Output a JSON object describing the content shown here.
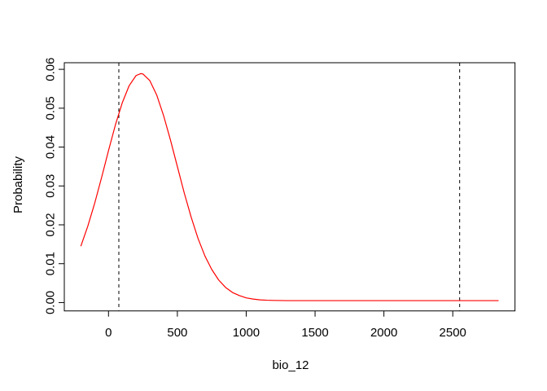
{
  "chart_data": {
    "type": "line",
    "xlabel": "bio_12",
    "ylabel": "Probability",
    "xlim": [
      -321,
      2952
    ],
    "ylim": [
      -0.00215,
      0.0617
    ],
    "grid": false,
    "legend": null,
    "background": "#FFFFFF",
    "axis_color": "#000000",
    "x_ticks": {
      "values": [
        0,
        500,
        1000,
        1500,
        2000,
        2500
      ],
      "labels": [
        "0",
        "500",
        "1000",
        "1500",
        "2000",
        "2500"
      ]
    },
    "y_ticks": {
      "values": [
        0,
        0.01,
        0.02,
        0.03,
        0.04,
        0.05,
        0.06
      ],
      "labels": [
        "0.00",
        "0.01",
        "0.02",
        "0.03",
        "0.04",
        "0.05",
        "0.06"
      ]
    },
    "vlines": [
      {
        "x": 75,
        "color": "#000000",
        "style": "dashed"
      },
      {
        "x": 2550,
        "color": "#000000",
        "style": "dashed"
      }
    ],
    "series": [
      {
        "name": "response_curve",
        "color": "#FF0000",
        "points": [
          [
            -200,
            0.0146
          ],
          [
            -150,
            0.0197
          ],
          [
            -100,
            0.0256
          ],
          [
            -50,
            0.0322
          ],
          [
            0,
            0.0391
          ],
          [
            50,
            0.0457
          ],
          [
            100,
            0.0514
          ],
          [
            150,
            0.0558
          ],
          [
            200,
            0.0584
          ],
          [
            235,
            0.0589
          ],
          [
            250,
            0.0588
          ],
          [
            300,
            0.0571
          ],
          [
            350,
            0.0534
          ],
          [
            400,
            0.0481
          ],
          [
            450,
            0.0418
          ],
          [
            500,
            0.035
          ],
          [
            550,
            0.0282
          ],
          [
            600,
            0.022
          ],
          [
            650,
            0.0165
          ],
          [
            700,
            0.012
          ],
          [
            750,
            0.0085
          ],
          [
            800,
            0.0058
          ],
          [
            850,
            0.0039
          ],
          [
            900,
            0.0026
          ],
          [
            950,
            0.0018
          ],
          [
            1000,
            0.0012
          ],
          [
            1050,
            0.0009
          ],
          [
            1100,
            0.0007
          ],
          [
            1150,
            0.0006
          ],
          [
            1200,
            0.00055
          ],
          [
            1300,
            0.0005
          ],
          [
            1400,
            0.0005
          ],
          [
            1600,
            0.0005
          ],
          [
            1800,
            0.0005
          ],
          [
            2000,
            0.0005
          ],
          [
            2200,
            0.0005
          ],
          [
            2400,
            0.0005
          ],
          [
            2600,
            0.0005
          ],
          [
            2830,
            0.0005
          ]
        ]
      }
    ]
  }
}
